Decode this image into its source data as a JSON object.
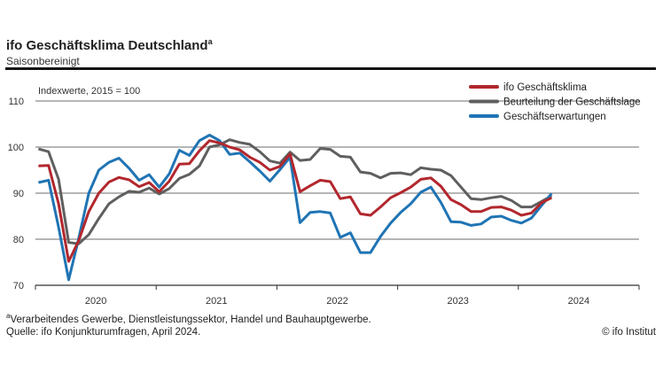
{
  "header": {
    "title": "ifo Geschäftsklima Deutschland",
    "title_sup": "a",
    "subtitle": "Saisonbereinigt"
  },
  "chart_data": {
    "type": "line",
    "ylabel": "Indexwerte, 2015 = 100",
    "ylim": [
      70,
      110
    ],
    "yticks": [
      70,
      80,
      90,
      100,
      110
    ],
    "xticks": [
      "2020",
      "2021",
      "2022",
      "2023",
      "2024"
    ],
    "xlim": [
      "2020-01",
      "2024-12"
    ],
    "grid": true,
    "legend": "top-right",
    "x_start": "2020-01",
    "series": [
      {
        "name": "ifo Geschäftsklima",
        "color": "#b2272d",
        "values": [
          95.9,
          96.0,
          87.7,
          75.2,
          79.7,
          86.0,
          90.0,
          92.4,
          93.4,
          92.9,
          91.4,
          92.3,
          90.3,
          92.6,
          96.3,
          96.4,
          99.2,
          101.4,
          100.9,
          100.0,
          99.4,
          97.8,
          96.7,
          95.0,
          95.8,
          98.5,
          90.3,
          91.6,
          92.8,
          92.5,
          88.8,
          89.2,
          85.5,
          85.2,
          87.0,
          89.0,
          90.1,
          91.3,
          93.0,
          93.3,
          91.5,
          88.6,
          87.5,
          86.0,
          86.0,
          86.9,
          87.0,
          86.3,
          85.2,
          85.7,
          87.9,
          89.0
        ]
      },
      {
        "name": "Beurteilung der Geschäftslage",
        "color": "#5f5f5f",
        "values": [
          99.6,
          99.0,
          93.0,
          79.3,
          79.0,
          81.0,
          84.5,
          87.7,
          89.2,
          90.4,
          90.2,
          91.1,
          89.8,
          91.0,
          93.2,
          94.1,
          95.9,
          100.0,
          100.5,
          101.6,
          101.0,
          100.6,
          99.0,
          97.0,
          96.5,
          98.9,
          97.1,
          97.3,
          99.7,
          99.5,
          98.0,
          97.8,
          94.6,
          94.3,
          93.3,
          94.3,
          94.4,
          94.0,
          95.5,
          95.2,
          95.0,
          93.8,
          91.3,
          88.8,
          88.6,
          89.0,
          89.3,
          88.4,
          87.0,
          87.0,
          88.2,
          89.4
        ]
      },
      {
        "name": "Geschäftserwartungen",
        "color": "#1f74b4",
        "values": [
          92.3,
          92.8,
          82.6,
          71.2,
          80.2,
          90.0,
          95.0,
          96.7,
          97.6,
          95.4,
          92.8,
          94.0,
          91.3,
          94.2,
          99.3,
          98.2,
          101.4,
          102.6,
          101.4,
          98.4,
          98.7,
          96.8,
          94.8,
          92.6,
          95.1,
          97.8,
          83.6,
          85.8,
          86.0,
          85.7,
          80.4,
          81.4,
          77.1,
          77.1,
          80.6,
          83.5,
          85.8,
          87.7,
          90.2,
          91.3,
          88.0,
          83.8,
          83.7,
          83.0,
          83.3,
          84.8,
          85.0,
          84.1,
          83.5,
          84.6,
          87.3,
          89.9
        ]
      }
    ]
  },
  "footer": {
    "note_sup": "a",
    "note": "Verarbeitendes Gewerbe, Dienstleistungssektor, Handel und Bauhauptgewerbe.",
    "source": "Quelle: ifo Konjunkturumfragen, April 2024.",
    "copyright": "© ifo Institut"
  }
}
